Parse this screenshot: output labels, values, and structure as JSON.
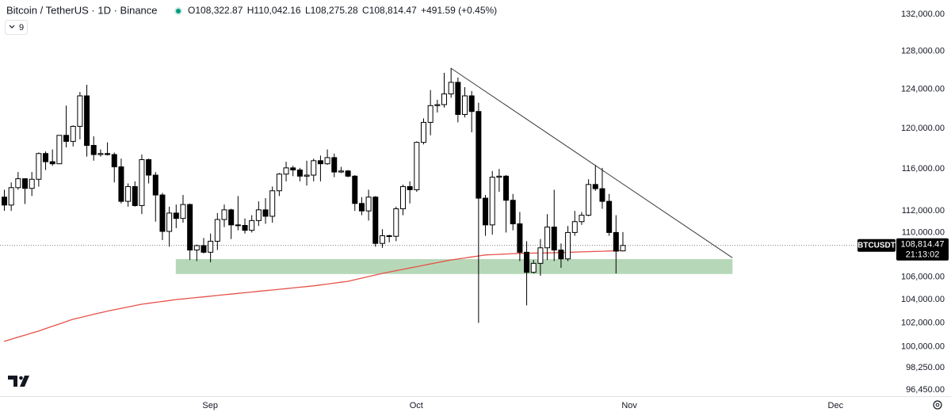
{
  "chart_data": {
    "type": "candlestick",
    "title": "Bitcoin / TetherUS · 1D · Binance",
    "ohlc": [
      {
        "label": "O",
        "text": "108,322.87"
      },
      {
        "label": "H",
        "text": "110,042.16"
      },
      {
        "label": "L",
        "text": "108,275.28"
      },
      {
        "label": "C",
        "text": "108,814.47"
      }
    ],
    "change": "+491.59 (+0.45%)",
    "indicators": "9",
    "categories": [
      null,
      null,
      null,
      null,
      null,
      null,
      null,
      null,
      null,
      null,
      null,
      null,
      null,
      null,
      null,
      null,
      null,
      null,
      null,
      null,
      null,
      null,
      null,
      null,
      null,
      null,
      null,
      null,
      null,
      null,
      "Sep",
      null,
      null,
      null,
      null,
      null,
      null,
      null,
      null,
      null,
      null,
      null,
      null,
      null,
      null,
      null,
      null,
      null,
      null,
      null,
      null,
      null,
      null,
      null,
      null,
      null,
      null,
      null,
      null,
      null,
      "Oct",
      null,
      null,
      null,
      null,
      null,
      null,
      null,
      null,
      null,
      null,
      null,
      null,
      null,
      null,
      null,
      null,
      null,
      null,
      null,
      null,
      null,
      null,
      null,
      null,
      null,
      null,
      null,
      null,
      null,
      null,
      "Nov",
      null,
      null,
      null,
      null,
      null,
      null,
      null,
      null,
      null,
      null,
      null,
      null,
      null,
      null,
      null,
      null,
      null,
      null,
      null,
      null,
      null,
      null,
      null,
      null,
      null,
      null,
      null,
      null,
      null,
      "Dec"
    ],
    "open": [
      113300,
      112550,
      114200,
      115050,
      114130,
      115000,
      117500,
      116700,
      116500,
      119300,
      118700,
      120200,
      123300,
      118300,
      117400,
      117500,
      117400,
      116200,
      112900,
      114300,
      112500,
      116900,
      115400,
      113500,
      110100,
      111800,
      111300,
      112600,
      108400,
      108800,
      108200,
      109200,
      111200,
      112100,
      110700,
      110650,
      110200,
      111100,
      112100,
      111500,
      113900,
      115500,
      116100,
      115900,
      115300,
      115400,
      116800,
      116500,
      117100,
      115700,
      115800,
      115300,
      112700,
      112000,
      113300,
      109000,
      109700,
      109650,
      112200,
      114300,
      114000,
      118600,
      120600,
      122300,
      122400,
      123500,
      124700,
      121400,
      123300,
      121700,
      113200,
      110700,
      115200,
      115300,
      113000,
      110800,
      108200,
      106400,
      107200,
      108600,
      110500,
      108400,
      107600,
      110000,
      111000,
      111600,
      114500,
      114100,
      112900,
      110000,
      108322.87,
      null,
      null,
      null,
      null,
      null,
      null,
      null,
      null,
      null,
      null,
      null,
      null,
      null,
      null,
      null,
      null,
      null,
      null,
      null,
      null,
      null,
      null,
      null,
      null,
      null,
      null,
      null,
      null,
      null,
      null,
      null
    ],
    "high": [
      114000,
      114700,
      115700,
      115100,
      115700,
      117600,
      117700,
      117900,
      119300,
      122300,
      120300,
      123700,
      124450,
      119200,
      117900,
      118600,
      117600,
      117000,
      114600,
      114800,
      117400,
      117000,
      115700,
      113700,
      112400,
      112600,
      113500,
      112700,
      108900,
      109500,
      109900,
      111800,
      112600,
      112200,
      113400,
      111300,
      111600,
      112900,
      113200,
      114300,
      115600,
      116700,
      116300,
      116100,
      116800,
      117000,
      117300,
      117900,
      117500,
      116200,
      115900,
      115400,
      113300,
      114000,
      113400,
      110300,
      109800,
      112400,
      114500,
      114800,
      118700,
      121000,
      123900,
      122900,
      125700,
      126200,
      125200,
      124200,
      123800,
      122600,
      113500,
      115800,
      116000,
      115400,
      113600,
      111900,
      109200,
      107500,
      109400,
      111700,
      114000,
      109000,
      110600,
      112000,
      111900,
      115000,
      116400,
      116100,
      113600,
      111600,
      110042.16,
      null,
      null,
      null,
      null,
      null,
      null,
      null,
      null,
      null,
      null,
      null,
      null,
      null,
      null,
      null,
      null,
      null,
      null,
      null,
      null,
      null,
      null,
      null,
      null,
      null,
      null,
      null,
      null,
      null,
      null,
      null
    ],
    "low": [
      112000,
      112000,
      114000,
      112650,
      113400,
      114300,
      115900,
      116300,
      116500,
      118100,
      118200,
      118900,
      117200,
      116800,
      117200,
      117300,
      114700,
      112700,
      112400,
      112400,
      111700,
      114600,
      111000,
      109300,
      108700,
      110400,
      110900,
      107500,
      107400,
      108100,
      107300,
      108400,
      110500,
      109400,
      110200,
      109900,
      110000,
      110600,
      110800,
      110900,
      113400,
      114800,
      115300,
      114800,
      114400,
      114800,
      114800,
      116400,
      115200,
      115600,
      115200,
      112000,
      111600,
      111100,
      108700,
      108600,
      109100,
      109200,
      111600,
      112700,
      113800,
      118400,
      119300,
      121600,
      122100,
      123100,
      120600,
      121100,
      119600,
      102000,
      109700,
      109800,
      113800,
      110000,
      110200,
      107400,
      103500,
      106300,
      106100,
      107500,
      107400,
      106800,
      107400,
      109700,
      110700,
      111500,
      113900,
      112200,
      109700,
      106300,
      108275.28,
      null,
      null,
      null,
      null,
      null,
      null,
      null,
      null,
      null,
      null,
      null,
      null,
      null,
      null,
      null,
      null,
      null,
      null,
      null,
      null,
      null,
      null,
      null,
      null,
      null,
      null,
      null,
      null,
      null,
      null,
      null
    ],
    "close": [
      112550,
      114200,
      115050,
      114130,
      115000,
      117500,
      116700,
      116500,
      119300,
      118700,
      120200,
      123300,
      118300,
      117400,
      117500,
      117400,
      116200,
      112900,
      114300,
      112500,
      116900,
      115400,
      113500,
      110100,
      111800,
      111300,
      112600,
      108400,
      108800,
      108200,
      109200,
      111200,
      112100,
      110700,
      110650,
      110200,
      111100,
      112100,
      111500,
      113900,
      115500,
      116100,
      115900,
      115300,
      115400,
      116800,
      116500,
      117100,
      115700,
      115800,
      115300,
      112700,
      112000,
      113300,
      109000,
      109700,
      109650,
      112200,
      114300,
      114000,
      118600,
      120600,
      122300,
      122400,
      123500,
      124700,
      121400,
      123300,
      121700,
      113200,
      110700,
      115200,
      115300,
      113000,
      110800,
      108200,
      106400,
      107200,
      108600,
      110500,
      108400,
      107600,
      110000,
      111000,
      111600,
      114500,
      114100,
      112900,
      110000,
      108300,
      108814.47,
      null,
      null,
      null,
      null,
      null,
      null,
      null,
      null,
      null,
      null,
      null,
      null,
      null,
      null,
      null,
      null,
      null,
      null,
      null,
      null,
      null,
      null,
      null,
      null,
      null,
      null,
      null,
      null,
      null,
      null,
      null
    ],
    "up_color": "#ffffff",
    "down_color": "#000000",
    "ma": {
      "color": "#e8524a",
      "values": [
        100430,
        100600,
        100780,
        100950,
        101130,
        101300,
        101500,
        101700,
        101900,
        102100,
        102300,
        102440,
        102580,
        102720,
        102860,
        103000,
        103120,
        103240,
        103360,
        103480,
        103600,
        103680,
        103760,
        103840,
        103920,
        104000,
        104060,
        104120,
        104180,
        104240,
        104300,
        104360,
        104420,
        104480,
        104540,
        104600,
        104660,
        104720,
        104780,
        104840,
        104900,
        104960,
        105020,
        105080,
        105140,
        105200,
        105280,
        105360,
        105440,
        105520,
        105600,
        105740,
        105880,
        106020,
        106160,
        106300,
        106420,
        106540,
        106660,
        106780,
        106900,
        107020,
        107140,
        107260,
        107380,
        107500,
        107590,
        107680,
        107770,
        107860,
        107950,
        107980,
        108010,
        108040,
        108070,
        108100,
        108110,
        108120,
        108130,
        108140,
        108150,
        108170,
        108190,
        108210,
        108230,
        108250,
        108270,
        108290,
        108310,
        108330,
        108350,
        null,
        null,
        null,
        null,
        null,
        null,
        null,
        null,
        null,
        null,
        null,
        null,
        null,
        null,
        null,
        null,
        null,
        null,
        null,
        null,
        null,
        null,
        null,
        null,
        null,
        null,
        null,
        null,
        null,
        null,
        null
      ]
    },
    "zone": {
      "low": 106250,
      "high": 107580,
      "start": 25,
      "end": 106,
      "color": "#a9d1ab"
    },
    "trendline": {
      "from": [
        65,
        126200
      ],
      "to": [
        106,
        107700
      ],
      "color": "#3a3a3a"
    },
    "last_price": {
      "symbol": "BTCUSDT",
      "price": "108,814.47",
      "countdown": "21:13:02"
    },
    "log_scale": true,
    "ylim": [
      95940,
      133580
    ],
    "yticks": [
      {
        "value": 96450,
        "label": "96,450.00"
      },
      {
        "value": 98250,
        "label": "98,250.00"
      },
      {
        "value": 100000,
        "label": "100,000.00"
      },
      {
        "value": 102000,
        "label": "102,000.00"
      },
      {
        "value": 104000,
        "label": "104,000.00"
      },
      {
        "value": 106000,
        "label": "106,000.00"
      },
      {
        "value": 110000,
        "label": "110,000.00"
      },
      {
        "value": 112000,
        "label": "112,000.00"
      },
      {
        "value": 116000,
        "label": "116,000.00"
      },
      {
        "value": 120000,
        "label": "120,000.00"
      },
      {
        "value": 124000,
        "label": "124,000.00"
      },
      {
        "value": 128000,
        "label": "128,000.00"
      },
      {
        "value": 132000,
        "label": "132,000.00"
      }
    ],
    "grid": false
  }
}
